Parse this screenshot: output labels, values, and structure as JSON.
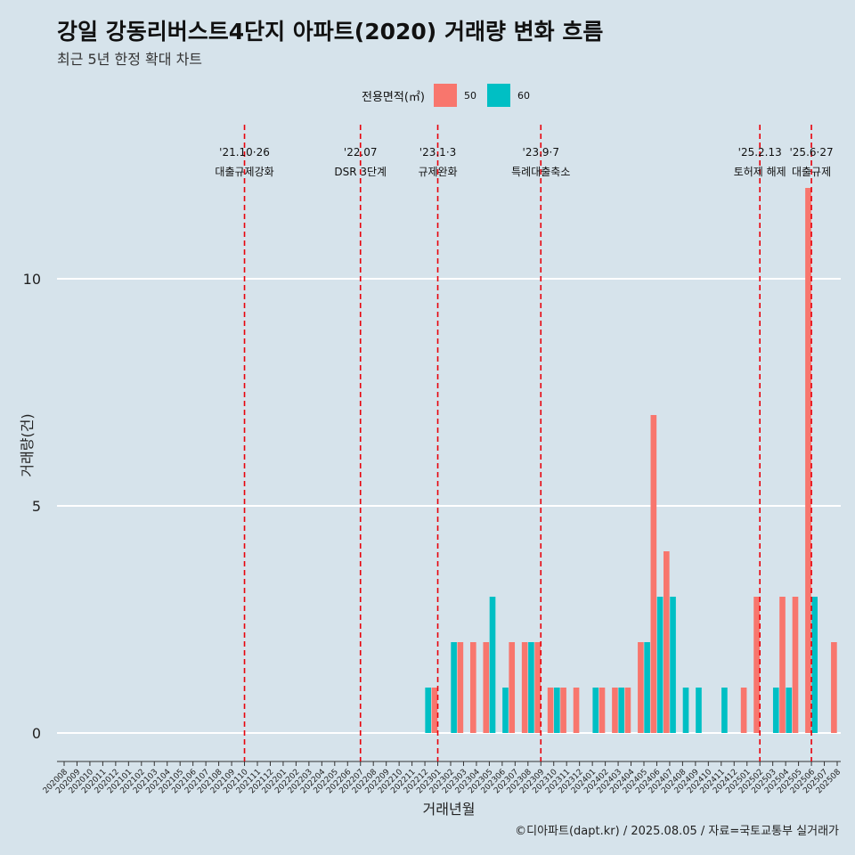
{
  "title": "강일 강동리버스트4단지 아파트(2020) 거래량 변화 흐름",
  "subtitle": "최근 5년 한정 확대 차트",
  "caption": "©디아파트(dapt.kr) / 2025.08.05 / 자료=국토교통부 실거래가",
  "legend": {
    "title": "전용면적(㎡)",
    "items": [
      {
        "label": "50",
        "color": "#f8766d"
      },
      {
        "label": "60",
        "color": "#00bfc4"
      }
    ]
  },
  "chart_data": {
    "type": "bar",
    "stacked": false,
    "xlabel": "거래년월",
    "ylabel": "거래량(건)",
    "ylim": [
      0,
      12
    ],
    "yticks": [
      0,
      5,
      10
    ],
    "grid": "horizontal",
    "legend_position": "top",
    "categories": [
      "202008",
      "202009",
      "202010",
      "202011",
      "202012",
      "202101",
      "202102",
      "202103",
      "202104",
      "202105",
      "202106",
      "202107",
      "202108",
      "202109",
      "202110",
      "202111",
      "202112",
      "202201",
      "202202",
      "202203",
      "202204",
      "202205",
      "202206",
      "202207",
      "202208",
      "202209",
      "202210",
      "202211",
      "202212",
      "202301",
      "202302",
      "202303",
      "202304",
      "202305",
      "202306",
      "202307",
      "202308",
      "202309",
      "202310",
      "202311",
      "202312",
      "202401",
      "202402",
      "202403",
      "202404",
      "202405",
      "202406",
      "202407",
      "202408",
      "202409",
      "202410",
      "202411",
      "202412",
      "202501",
      "202502",
      "202503",
      "202504",
      "202505",
      "202506",
      "202507",
      "202508"
    ],
    "series": [
      {
        "name": "50",
        "color": "#f8766d",
        "values": [
          0,
          0,
          0,
          0,
          0,
          0,
          0,
          0,
          0,
          0,
          0,
          0,
          0,
          0,
          0,
          0,
          0,
          0,
          0,
          0,
          0,
          0,
          0,
          0,
          0,
          0,
          0,
          0,
          0,
          1,
          0,
          2,
          2,
          2,
          0,
          2,
          2,
          2,
          1,
          1,
          1,
          0,
          1,
          1,
          1,
          2,
          7,
          4,
          0,
          0,
          0,
          0,
          0,
          1,
          3,
          0,
          3,
          3,
          12,
          0,
          2
        ]
      },
      {
        "name": "60",
        "color": "#00bfc4",
        "values": [
          0,
          0,
          0,
          0,
          0,
          0,
          0,
          0,
          0,
          0,
          0,
          0,
          0,
          0,
          0,
          0,
          0,
          0,
          0,
          0,
          0,
          0,
          0,
          0,
          0,
          0,
          0,
          0,
          1,
          0,
          2,
          0,
          0,
          3,
          1,
          0,
          2,
          0,
          1,
          0,
          0,
          1,
          0,
          1,
          0,
          2,
          3,
          3,
          1,
          1,
          0,
          1,
          0,
          0,
          0,
          1,
          1,
          0,
          3,
          0,
          0
        ]
      }
    ],
    "annotations": [
      {
        "date": "202110",
        "line1": "'21.10·26",
        "line2": "대출규제강화"
      },
      {
        "date": "202207",
        "line1": "'22.07",
        "line2": "DSR 3단계"
      },
      {
        "date": "202301",
        "line1": "'23.1·3",
        "line2": "규제완화"
      },
      {
        "date": "202309",
        "line1": "'23.9·7",
        "line2": "특례대출축소"
      },
      {
        "date": "202502",
        "line1": "'25.2.13",
        "line2": "토허제 해제"
      },
      {
        "date": "202506",
        "line1": "'25.6·27",
        "line2": "대출규제"
      }
    ]
  }
}
